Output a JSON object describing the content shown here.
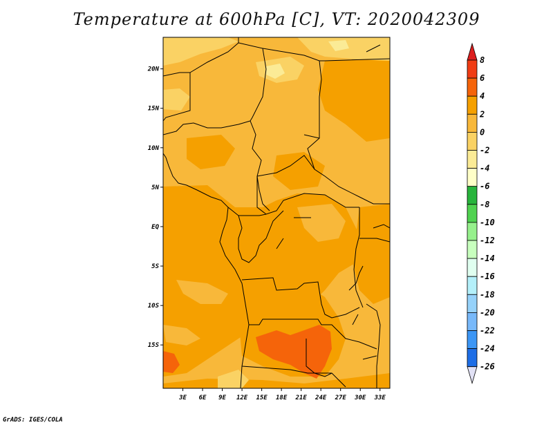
{
  "title": "Temperature at 600hPa [C], VT: 2020042309",
  "credit": "GrADS: IGES/COLA",
  "map": {
    "lon_range": [
      0,
      34.5
    ],
    "lat_range": [
      -20.5,
      24
    ],
    "lon_ticks": [
      {
        "value": 3,
        "label": "3E"
      },
      {
        "value": 6,
        "label": "6E"
      },
      {
        "value": 9,
        "label": "9E"
      },
      {
        "value": 12,
        "label": "12E"
      },
      {
        "value": 15,
        "label": "15E"
      },
      {
        "value": 18,
        "label": "18E"
      },
      {
        "value": 21,
        "label": "21E"
      },
      {
        "value": 24,
        "label": "24E"
      },
      {
        "value": 27,
        "label": "27E"
      },
      {
        "value": 30,
        "label": "30E"
      },
      {
        "value": 33,
        "label": "33E"
      }
    ],
    "lat_ticks": [
      {
        "value": 20,
        "label": "20N"
      },
      {
        "value": 15,
        "label": "15N"
      },
      {
        "value": 10,
        "label": "10N"
      },
      {
        "value": 5,
        "label": "5N"
      },
      {
        "value": 0,
        "label": "EQ"
      },
      {
        "value": -5,
        "label": "5S"
      },
      {
        "value": -10,
        "label": "10S"
      },
      {
        "value": -15,
        "label": "15S"
      }
    ]
  },
  "colorbar": {
    "levels": [
      {
        "label": "8",
        "color": "#dc1e1e"
      },
      {
        "label": "6",
        "color": "#f03c14"
      },
      {
        "label": "4",
        "color": "#f5640a"
      },
      {
        "label": "2",
        "color": "#f5a000"
      },
      {
        "label": "0",
        "color": "#f8b83a"
      },
      {
        "label": "-2",
        "color": "#fad264"
      },
      {
        "label": "-4",
        "color": "#fbeb96"
      },
      {
        "label": "-6",
        "color": "#ffffc8"
      },
      {
        "label": "-8",
        "color": "#28b43c"
      },
      {
        "label": "-10",
        "color": "#50d250"
      },
      {
        "label": "-12",
        "color": "#96f08c"
      },
      {
        "label": "-14",
        "color": "#c8ffbe"
      },
      {
        "label": "-16",
        "color": "#e0fff0"
      },
      {
        "label": "-18",
        "color": "#b4f0fa"
      },
      {
        "label": "-20",
        "color": "#96d2fa"
      },
      {
        "label": "-22",
        "color": "#78b9fa"
      },
      {
        "label": "-24",
        "color": "#3c96f5"
      },
      {
        "label": "-26",
        "color": "#1e6ee6"
      }
    ],
    "extra_colors": [
      "#1450d2",
      "#0a32b4",
      "#000a78",
      "#e1e1f5"
    ]
  },
  "colors": {
    "deep_orange": "#f5a000",
    "mid_orange": "#f8b83a",
    "light_yellow": "#fad264",
    "pale_yellow": "#fbeb96",
    "warm_orange": "#f5640a",
    "border": "#000000"
  }
}
